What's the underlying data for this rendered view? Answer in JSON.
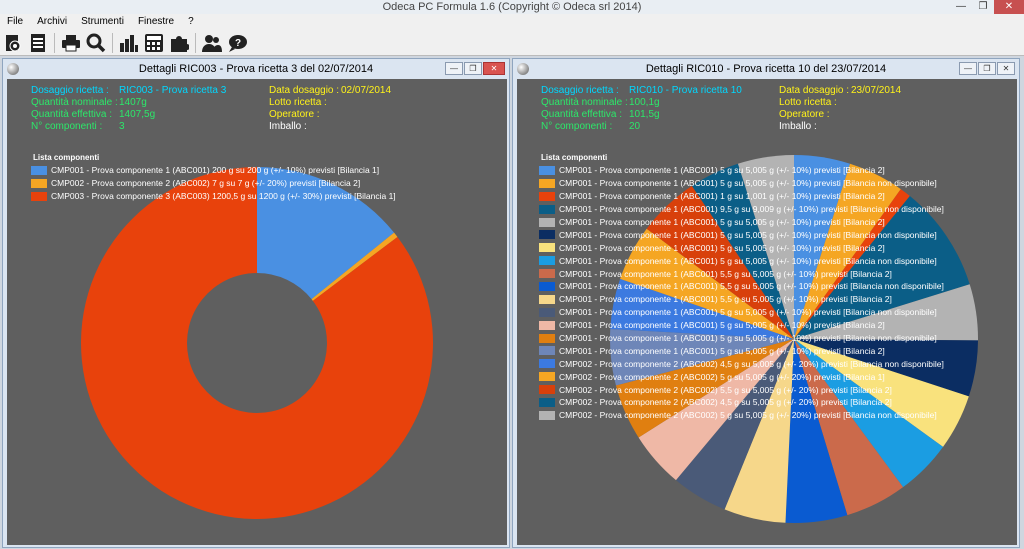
{
  "app": {
    "title": "Odeca PC Formula 1.6  (Copyright © Odeca srl 2014)"
  },
  "menu": [
    "File",
    "Archivi",
    "Strumenti",
    "Finestre",
    "?"
  ],
  "toolbar": [
    "settings-icon",
    "document-icon",
    "print-icon",
    "search-icon",
    "bar-chart-icon",
    "calculator-icon",
    "puzzle-icon",
    "users-icon",
    "help-chat-icon"
  ],
  "window1": {
    "title": "Dettagli RIC003 - Prova ricetta 3 del 02/07/2014",
    "labels": {
      "dosaggio_ricetta": "Dosaggio ricetta :",
      "quantita_nominale": "Quantità nominale :",
      "quantita_effettiva": "Quantità effettiva :",
      "n_componenti": "N° componenti :",
      "data_dosaggio": "Data dosaggio :",
      "lotto_ricetta": "Lotto ricetta :",
      "operatore": "Operatore :",
      "imballo": "Imballo :"
    },
    "values": {
      "dosaggio_ricetta": "RIC003 - Prova ricetta 3",
      "quantita_nominale": "1407g",
      "quantita_effettiva": "1407,5g",
      "n_componenti": "3",
      "data_dosaggio": "02/07/2014"
    },
    "legend_title": "Lista componenti",
    "chart_data": {
      "type": "pie",
      "donut": true,
      "title": "Lista componenti",
      "labels": [
        "CMP001 - Prova componente 1 (ABC001)  200 g  su  200 g (+/- 10%) previsti  [Bilancia 1]",
        "CMP002 - Prova componente 2 (ABC002)  7 g  su  7 g (+/- 20%) previsti  [Bilancia 2]",
        "CMP003 - Prova componente 3 (ABC003)  1200,5 g  su  1200 g (+/- 30%) previsti  [Bilancia 1]"
      ],
      "values": [
        200,
        7,
        1200.5
      ],
      "colors": [
        "#4a90e2",
        "#f5a623",
        "#e8420c"
      ]
    }
  },
  "window2": {
    "title": "Dettagli RIC010 - Prova ricetta 10 del 23/07/2014",
    "labels": {
      "dosaggio_ricetta": "Dosaggio ricetta :",
      "quantita_nominale": "Quantità nominale :",
      "quantita_effettiva": "Quantità effettiva :",
      "n_componenti": "N° componenti :",
      "data_dosaggio": "Data dosaggio :",
      "lotto_ricetta": "Lotto ricetta :",
      "operatore": "Operatore :",
      "imballo": "Imballo :"
    },
    "values": {
      "dosaggio_ricetta": "RIC010 - Prova ricetta 10",
      "quantita_nominale": "100,1g",
      "quantita_effettiva": "101,5g",
      "n_componenti": "20",
      "data_dosaggio": "23/07/2014"
    },
    "legend_title": "Lista componenti",
    "chart_data": {
      "type": "pie",
      "title": "Lista componenti",
      "labels": [
        "CMP001 - Prova componente 1 (ABC001)  5 g  su  5,005 g (+/- 10%) previsti  [Bilancia 2]",
        "CMP001 - Prova componente 1 (ABC001)  5 g  su  5,005 g (+/- 10%) previsti  [Bilancia non disponibile]",
        "CMP001 - Prova componente 1 (ABC001)  1 g  su  1,001 g (+/- 10%) previsti  [Bilancia 2]",
        "CMP001 - Prova componente 1 (ABC001)  9,5 g  su  9,009 g (+/- 10%) previsti  [Bilancia non disponibile]",
        "CMP001 - Prova componente 1 (ABC001)  5 g  su  5,005 g (+/- 10%) previsti  [Bilancia 2]",
        "CMP001 - Prova componente 1 (ABC001)  5 g  su  5,005 g (+/- 10%) previsti  [Bilancia non disponibile]",
        "CMP001 - Prova componente 1 (ABC001)  5 g  su  5,005 g (+/- 10%) previsti  [Bilancia 2]",
        "CMP001 - Prova componente 1 (ABC001)  5 g  su  5,005 g (+/- 10%) previsti  [Bilancia non disponibile]",
        "CMP001 - Prova componente 1 (ABC001)  5,5 g  su  5,005 g (+/- 10%) previsti  [Bilancia 2]",
        "CMP001 - Prova componente 1 (ABC001)  5,5 g  su  5,005 g (+/- 10%) previsti  [Bilancia non disponibile]",
        "CMP001 - Prova componente 1 (ABC001)  5,5 g  su  5,005 g (+/- 10%) previsti  [Bilancia 2]",
        "CMP001 - Prova componente 1 (ABC001)  5 g  su  5,005 g (+/- 10%) previsti  [Bilancia non disponibile]",
        "CMP001 - Prova componente 1 (ABC001)  5 g  su  5,005 g (+/- 10%) previsti  [Bilancia 2]",
        "CMP001 - Prova componente 1 (ABC001)  5 g  su  5,005 g (+/- 10%) previsti  [Bilancia non disponibile]",
        "CMP001 - Prova componente 1 (ABC001)  5 g  su  5,005 g (+/- 10%) previsti  [Bilancia 2]",
        "CMP002 - Prova componente 2 (ABC002)  4,5 g  su  5,005 g (+/- 20%) previsti  [Bilancia non disponibile]",
        "CMP002 - Prova componente 2 (ABC002)  5 g  su  5,005 g (+/- 20%) previsti  [Bilancia 1]",
        "CMP002 - Prova componente 2 (ABC002)  5,5 g  su  5,005 g (+/- 20%) previsti  [Bilancia 2]",
        "CMP002 - Prova componente 2 (ABC002)  4,5 g  su  5,005 g (+/- 20%) previsti  [Bilancia 2]",
        "CMP002 - Prova componente 2 (ABC002)  5 g  su  5,005 g (+/- 20%) previsti  [Bilancia non disponibile]"
      ],
      "values": [
        5,
        5,
        1,
        9.5,
        5,
        5,
        5,
        5,
        5.5,
        5.5,
        5.5,
        5,
        5,
        5,
        5,
        4.5,
        5,
        5.5,
        4.5,
        5
      ],
      "colors": [
        "#4a90e2",
        "#f5a623",
        "#e8420c",
        "#0b5e87",
        "#b3b3b3",
        "#0b2d62",
        "#f9e27d",
        "#1b9de2",
        "#cb6a4b",
        "#0a5bd1",
        "#f6d78a",
        "#4a5a78",
        "#efb8a6",
        "#e07f10",
        "#6e86b8",
        "#3c7ae0",
        "#f5a623",
        "#d8400b",
        "#0b5e87",
        "#b3b3b3"
      ]
    }
  }
}
